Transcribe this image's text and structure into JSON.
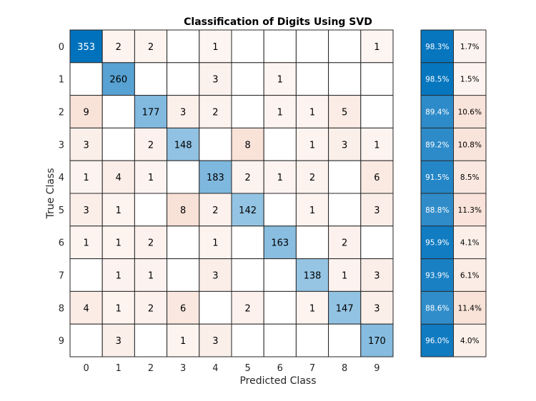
{
  "chart_data": {
    "type": "heatmap",
    "title": "Classification of Digits Using SVD",
    "xlabel": "Predicted Class",
    "ylabel": "True Class",
    "classes": [
      "0",
      "1",
      "2",
      "3",
      "4",
      "5",
      "6",
      "7",
      "8",
      "9"
    ],
    "matrix": [
      [
        353,
        2,
        2,
        null,
        1,
        null,
        null,
        null,
        null,
        1
      ],
      [
        null,
        260,
        null,
        null,
        3,
        null,
        1,
        null,
        null,
        null
      ],
      [
        9,
        null,
        177,
        3,
        2,
        null,
        1,
        1,
        5,
        null
      ],
      [
        3,
        null,
        2,
        148,
        null,
        8,
        null,
        1,
        3,
        1
      ],
      [
        1,
        4,
        1,
        null,
        183,
        2,
        1,
        2,
        null,
        6
      ],
      [
        3,
        1,
        null,
        8,
        2,
        142,
        null,
        1,
        null,
        3
      ],
      [
        1,
        1,
        2,
        null,
        1,
        null,
        163,
        null,
        2,
        null
      ],
      [
        null,
        1,
        1,
        null,
        3,
        null,
        null,
        138,
        1,
        3
      ],
      [
        4,
        1,
        2,
        6,
        null,
        2,
        null,
        1,
        147,
        3
      ],
      [
        null,
        3,
        null,
        1,
        3,
        null,
        null,
        null,
        null,
        170
      ]
    ],
    "row_summary": {
      "correct": [
        "98.3%",
        "98.5%",
        "89.4%",
        "89.2%",
        "91.5%",
        "88.8%",
        "95.9%",
        "93.9%",
        "88.6%",
        "96.0%"
      ],
      "incorrect": [
        "1.7%",
        "1.5%",
        "10.6%",
        "10.8%",
        "8.5%",
        "11.3%",
        "4.1%",
        "6.1%",
        "11.4%",
        "4.0%"
      ]
    },
    "colors": {
      "correct": "#0072bd",
      "incorrect": "#d95319",
      "grid": "#262626"
    }
  }
}
